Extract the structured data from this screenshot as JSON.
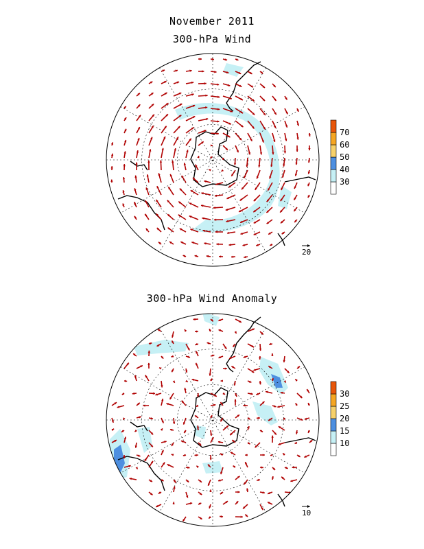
{
  "header": {
    "title_line1": "November 2011",
    "title_line2": "300-hPa Wind"
  },
  "panels": [
    {
      "id": "wind",
      "title": "",
      "reference_vector_label": "20",
      "colorbar": {
        "levels": [
          "30",
          "40",
          "50",
          "60",
          "70"
        ],
        "colors": [
          "#ffffff",
          "#c6f0f5",
          "#4d8fe0",
          "#f7d16a",
          "#f5a623",
          "#e8560a"
        ]
      }
    },
    {
      "id": "anomaly",
      "title": "300-hPa Wind Anomaly",
      "reference_vector_label": "10",
      "colorbar": {
        "levels": [
          "10",
          "15",
          "20",
          "25",
          "30"
        ],
        "colors": [
          "#ffffff",
          "#c6f0f5",
          "#4d8fe0",
          "#f7d16a",
          "#f5a623",
          "#e8560a"
        ]
      }
    }
  ],
  "style": {
    "arrow_color": "#b00000",
    "shade_light": "#c6f0f5",
    "shade_mid": "#4d8fe0"
  }
}
